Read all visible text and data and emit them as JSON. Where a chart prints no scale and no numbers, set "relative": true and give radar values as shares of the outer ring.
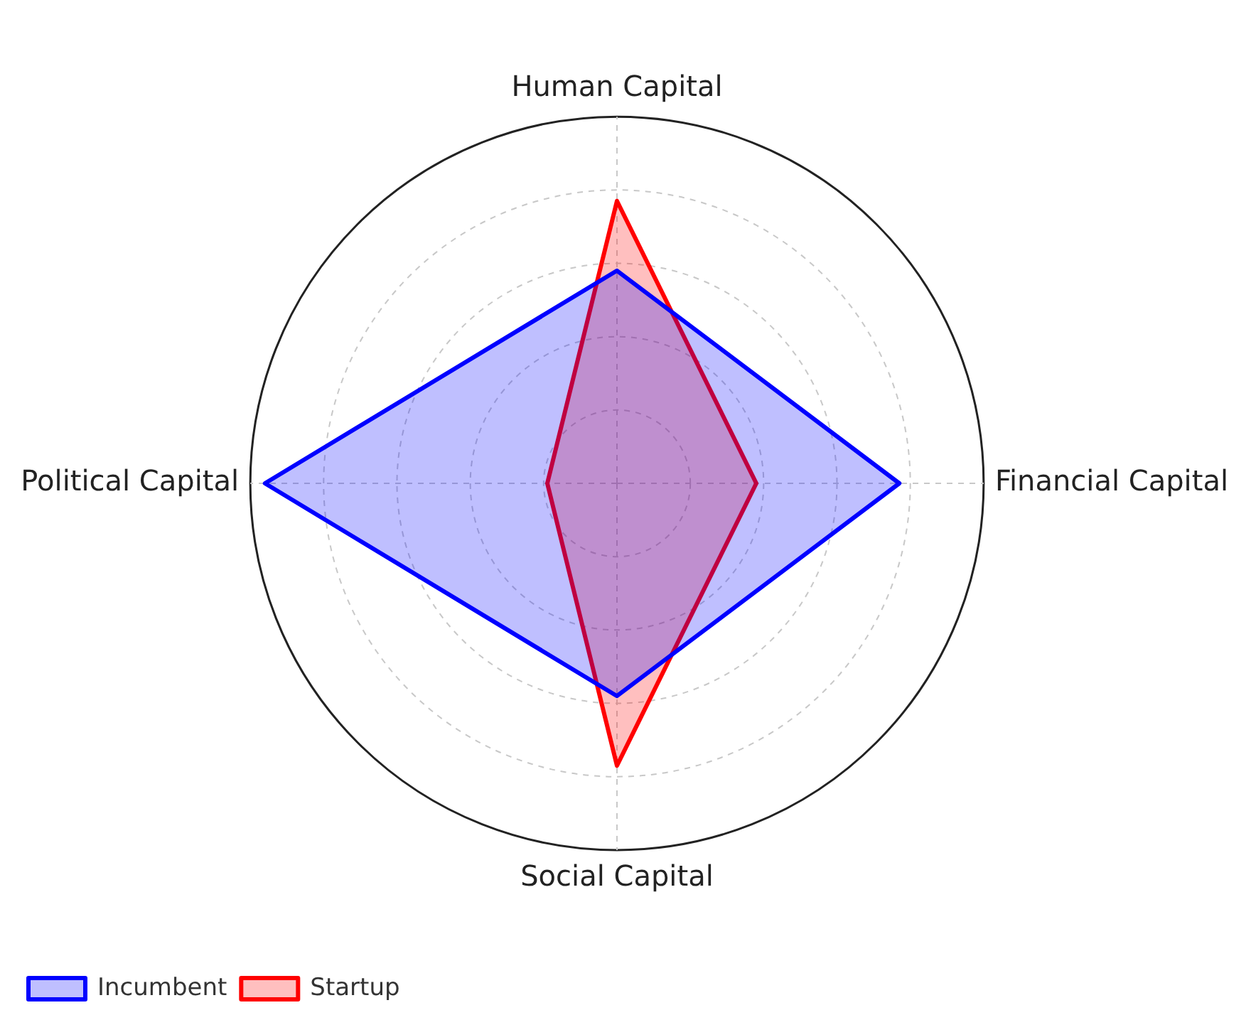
{
  "chart_data": {
    "type": "radar",
    "relative": true,
    "categories": [
      "Human Capital",
      "Financial Capital",
      "Social Capital",
      "Political Capital"
    ],
    "series": [
      {
        "name": "Incumbent",
        "color": "#0000ff",
        "values": [
          0.58,
          0.77,
          0.58,
          0.96
        ]
      },
      {
        "name": "Startup",
        "color": "#ff0000",
        "values": [
          0.77,
          0.38,
          0.77,
          0.19
        ]
      }
    ],
    "grid": true,
    "legend": "bottom left"
  }
}
